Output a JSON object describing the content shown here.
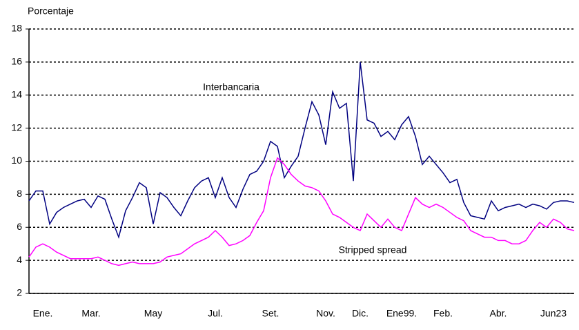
{
  "chart_data": {
    "type": "line",
    "y_label": "Porcentaje",
    "annotations": [
      "Interbancaria",
      "Stripped spread"
    ],
    "categories": [
      null,
      null,
      "Ene.",
      null,
      null,
      null,
      null,
      null,
      null,
      "Mar.",
      null,
      null,
      null,
      null,
      null,
      null,
      null,
      null,
      "May",
      null,
      null,
      null,
      null,
      null,
      null,
      null,
      null,
      "Jul.",
      null,
      null,
      null,
      null,
      null,
      null,
      null,
      "Set.",
      null,
      null,
      null,
      null,
      null,
      null,
      null,
      "Nov.",
      null,
      null,
      null,
      null,
      "Dic.",
      null,
      null,
      null,
      null,
      null,
      "Ene99.",
      null,
      null,
      null,
      null,
      null,
      "Feb.",
      null,
      null,
      null,
      null,
      null,
      null,
      null,
      "Abr.",
      null,
      null,
      null,
      null,
      null,
      null,
      null,
      "Jun23",
      null,
      null,
      null
    ],
    "series": [
      {
        "name": "Interbancaria",
        "color": "#000080",
        "values": [
          7.6,
          8.2,
          8.2,
          6.2,
          6.9,
          7.2,
          7.4,
          7.6,
          7.7,
          7.2,
          7.9,
          7.7,
          6.5,
          5.4,
          7.0,
          7.8,
          8.7,
          8.4,
          6.2,
          8.1,
          7.8,
          7.2,
          6.7,
          7.6,
          8.4,
          8.8,
          9.0,
          7.8,
          9.0,
          7.8,
          7.2,
          8.3,
          9.2,
          9.4,
          10.0,
          11.2,
          10.9,
          9.0,
          9.7,
          10.3,
          12.0,
          13.6,
          12.8,
          11.0,
          14.2,
          13.2,
          13.5,
          8.8,
          16.0,
          12.5,
          12.3,
          11.5,
          11.8,
          11.3,
          12.2,
          12.7,
          11.5,
          9.8,
          10.3,
          9.8,
          9.3,
          8.7,
          8.9,
          7.5,
          6.7,
          6.6,
          6.5,
          7.6,
          7.0,
          7.2,
          7.3,
          7.4,
          7.2,
          7.4,
          7.3,
          7.1,
          7.5,
          7.6,
          7.6,
          7.5
        ]
      },
      {
        "name": "Stripped spread",
        "color": "#ff00ff",
        "values": [
          4.2,
          4.8,
          5.0,
          4.8,
          4.5,
          4.3,
          4.1,
          4.1,
          4.1,
          4.1,
          4.2,
          4.0,
          3.8,
          3.7,
          3.8,
          3.9,
          3.8,
          3.8,
          3.8,
          3.9,
          4.2,
          4.3,
          4.4,
          4.7,
          5.0,
          5.2,
          5.4,
          5.8,
          5.4,
          4.9,
          5.0,
          5.2,
          5.5,
          6.3,
          7.0,
          9.0,
          10.2,
          9.8,
          9.2,
          8.8,
          8.5,
          8.4,
          8.2,
          7.6,
          6.8,
          6.6,
          6.3,
          6.0,
          5.8,
          6.8,
          6.4,
          6.0,
          6.5,
          6.0,
          5.8,
          6.8,
          7.8,
          7.4,
          7.2,
          7.4,
          7.2,
          6.9,
          6.6,
          6.4,
          5.8,
          5.6,
          5.4,
          5.4,
          5.2,
          5.2,
          5.0,
          5.0,
          5.2,
          5.8,
          6.3,
          6.0,
          6.5,
          6.3,
          5.9,
          5.8
        ]
      }
    ],
    "ylim": [
      2,
      18
    ],
    "yticks": [
      2,
      4,
      6,
      8,
      10,
      12,
      14,
      16,
      18
    ],
    "grid": true
  }
}
